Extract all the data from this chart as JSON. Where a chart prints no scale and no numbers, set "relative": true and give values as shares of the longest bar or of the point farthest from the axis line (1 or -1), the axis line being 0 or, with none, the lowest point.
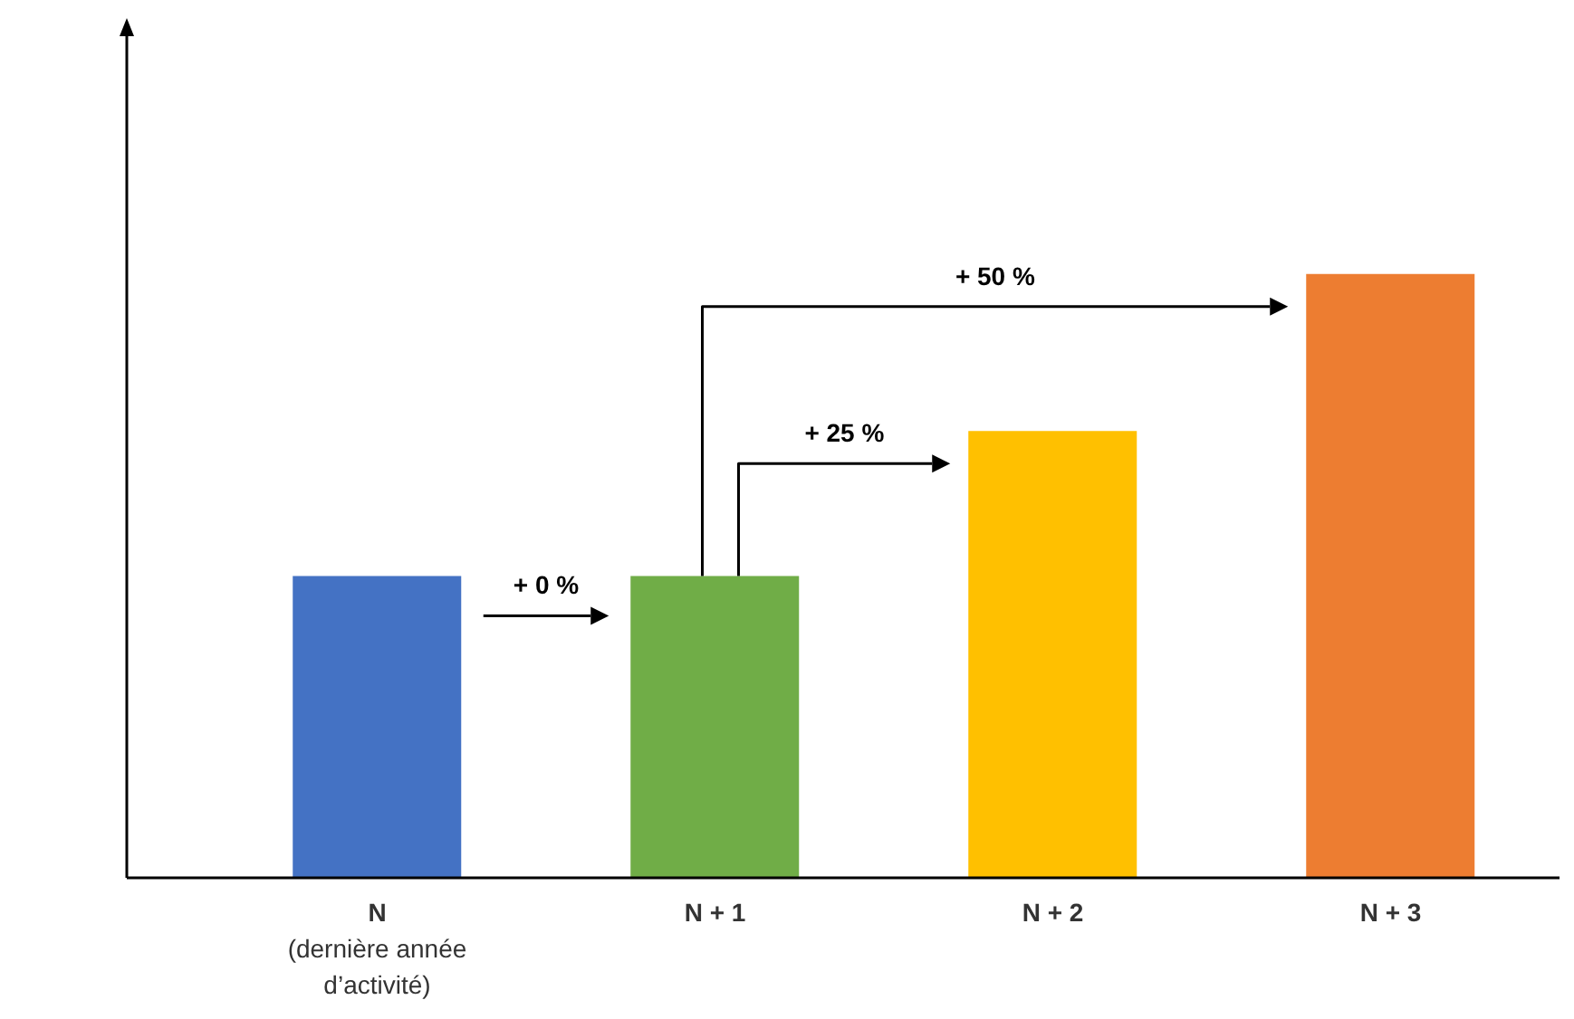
{
  "chart_data": {
    "type": "bar",
    "relative": true,
    "categories": [
      "N\n(dernière année\nd’activité)",
      "N + 1",
      "N + 2",
      "N + 3"
    ],
    "values": [
      0.5,
      0.5,
      0.74,
      1
    ],
    "colors": [
      "#4472c4",
      "#70ad47",
      "#ffc000",
      "#ed7d31"
    ],
    "annotations": [
      "+ 0 %",
      "+ 25 %",
      "+ 50 %"
    ]
  }
}
